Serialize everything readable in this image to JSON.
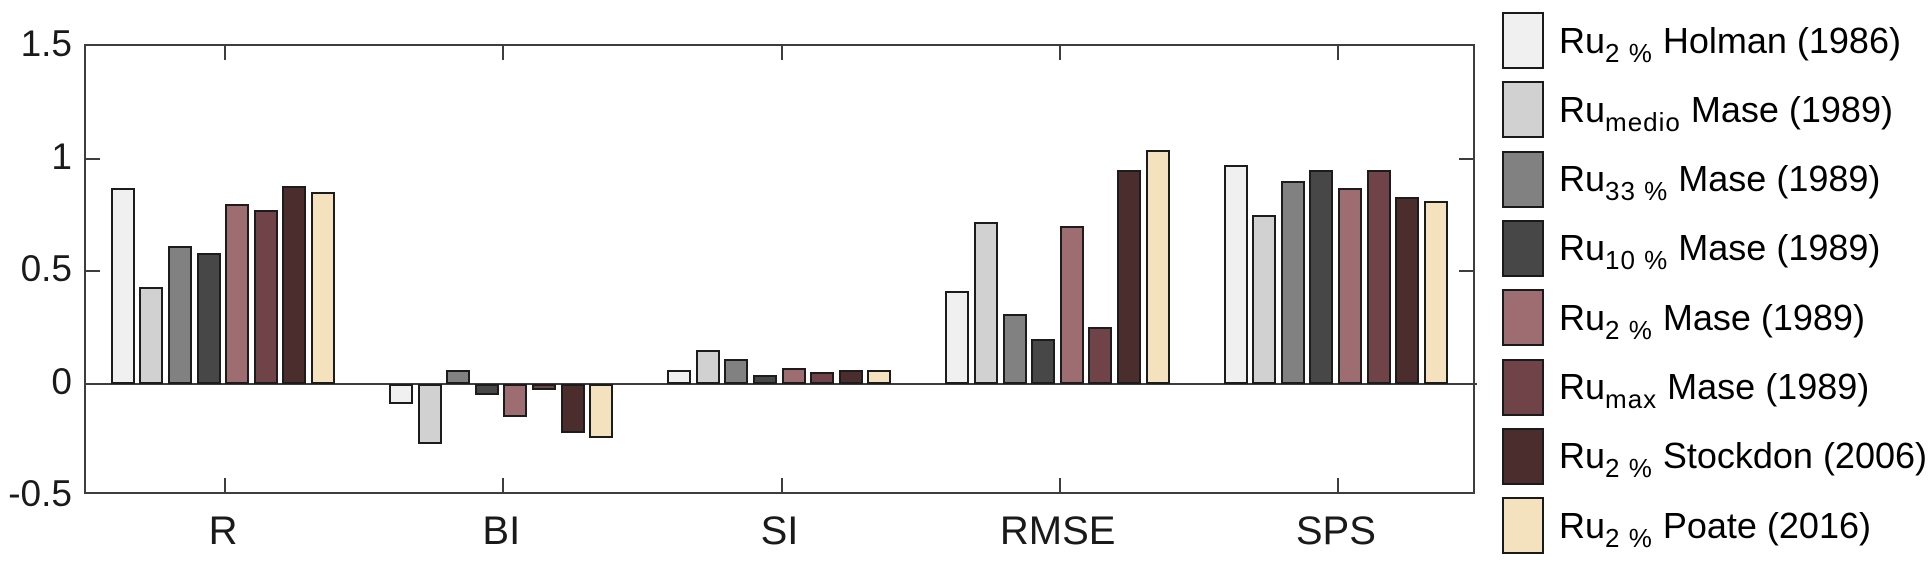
{
  "figure": {
    "background": "#ffffff",
    "axis_color": "#3d3d3d",
    "text_color": "#1a1a1a",
    "bar_edge_color": "#1c1c1c"
  },
  "chart_data": {
    "type": "bar",
    "title": "",
    "xlabel": "",
    "ylabel": "",
    "grid": false,
    "legend_position": "right-outside",
    "categories": [
      "R",
      "BI",
      "SI",
      "RMSE",
      "SPS"
    ],
    "ylim": [
      -0.5,
      1.5
    ],
    "yticks": [
      {
        "value": 1.5,
        "label": "1.5"
      },
      {
        "value": 1,
        "label": "1"
      },
      {
        "value": 0.5,
        "label": "0.5"
      },
      {
        "value": 0,
        "label": "0"
      },
      {
        "value": -0.5,
        "label": "-0.5"
      }
    ],
    "series": [
      {
        "name": "Ru2% Holman (1986)",
        "legend": {
          "base": "Ru",
          "sub": "2 %",
          "rest": "Holman (1986)"
        },
        "color": "#f1f0f0",
        "values": [
          0.87,
          -0.09,
          0.06,
          0.41,
          0.97
        ]
      },
      {
        "name": "Rumedio Mase (1989)",
        "legend": {
          "base": "Ru",
          "sub": "medio",
          "rest": "Mase (1989)"
        },
        "color": "#d2d1d1",
        "values": [
          0.43,
          -0.27,
          0.15,
          0.72,
          0.75
        ]
      },
      {
        "name": "Ru33% Mase (1989)",
        "legend": {
          "base": "Ru",
          "sub": "33 %",
          "rest": "Mase (1989)"
        },
        "color": "#828181",
        "values": [
          0.61,
          0.06,
          0.11,
          0.31,
          0.9
        ]
      },
      {
        "name": "Ru10% Mase (1989)",
        "legend": {
          "base": "Ru",
          "sub": "10 %",
          "rest": "Mase (1989)"
        },
        "color": "#484747",
        "values": [
          0.58,
          -0.05,
          0.04,
          0.2,
          0.95
        ]
      },
      {
        "name": "Ru2% Mase (1989)",
        "legend": {
          "base": "Ru",
          "sub": "2 %",
          "rest": "Mase (1989)"
        },
        "color": "#9d6d71",
        "values": [
          0.8,
          -0.15,
          0.07,
          0.7,
          0.87
        ]
      },
      {
        "name": "Rumax Mase (1989)",
        "legend": {
          "base": "Ru",
          "sub": "max",
          "rest": "Mase (1989)"
        },
        "color": "#6f4347",
        "values": [
          0.77,
          -0.03,
          0.05,
          0.25,
          0.95
        ]
      },
      {
        "name": "Ru2% Stockdon (2006)",
        "legend": {
          "base": "Ru",
          "sub": "2 %",
          "rest": "Stockdon (2006)"
        },
        "color": "#4c2d2e",
        "values": [
          0.88,
          -0.22,
          0.06,
          0.95,
          0.83
        ]
      },
      {
        "name": "Ru2% Poate (2016)",
        "legend": {
          "base": "Ru",
          "sub": "2 %",
          "rest": "Poate (2016)"
        },
        "color": "#f4e1bd",
        "values": [
          0.85,
          -0.24,
          0.06,
          1.04,
          0.81
        ]
      }
    ]
  }
}
